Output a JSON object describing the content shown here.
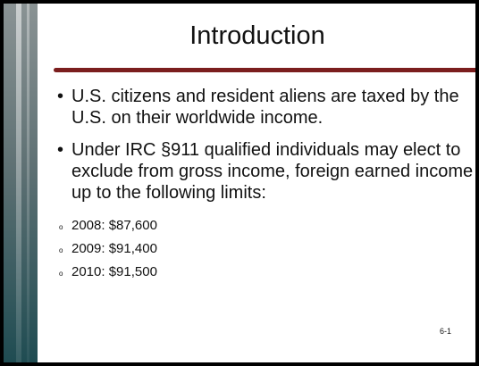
{
  "slide": {
    "title": "Introduction",
    "bullets": [
      "U.S. citizens and resident aliens are taxed by the U.S. on their worldwide income.",
      "Under IRC §911 qualified individuals may elect to exclude from gross income, foreign earned income up to the following limits:"
    ],
    "sub_bullets": [
      "2008: $87,600",
      "2009: $91,400",
      "2010: $91,500"
    ],
    "page_number": "6-1"
  }
}
